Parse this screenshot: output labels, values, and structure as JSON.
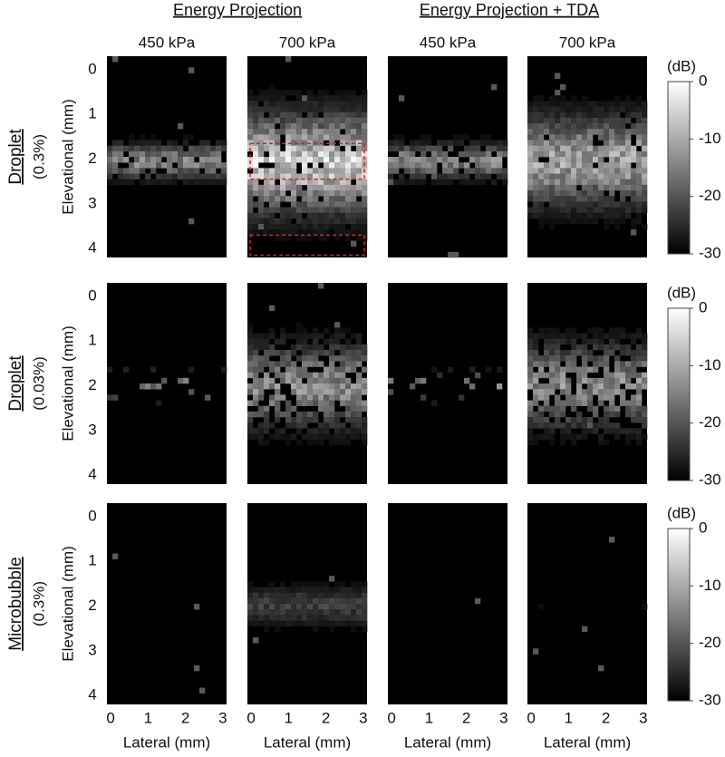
{
  "groups": [
    "Energy Projection",
    "Energy Projection + TDA"
  ],
  "columns": [
    "450 kPa",
    "700 kPa",
    "450 kPa",
    "700 kPa"
  ],
  "rows": [
    {
      "label": "Droplet",
      "sub": "(0.3%)"
    },
    {
      "label": "Droplet",
      "sub": "(0.03%)"
    },
    {
      "label": "Microbubble",
      "sub": "(0.3%)"
    }
  ],
  "y_axis_label": "Elevational (mm)",
  "y_ticks": [
    "0",
    "1",
    "2",
    "3",
    "4"
  ],
  "x_axis_label": "Lateral (mm)",
  "x_ticks": [
    "0",
    "1",
    "2",
    "3"
  ],
  "colorbar": {
    "unit": "(dB)",
    "ticks": [
      "0",
      "-10",
      "-20",
      "-30"
    ]
  }
}
